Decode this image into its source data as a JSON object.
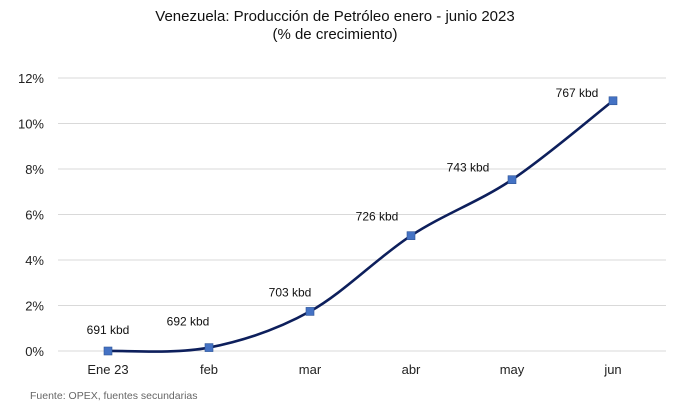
{
  "chart_data": {
    "type": "line",
    "title": "Venezuela: Producción de Petróleo enero - junio 2023",
    "subtitle": "(% de crecimiento)",
    "categories": [
      "Ene 23",
      "feb",
      "mar",
      "abr",
      "may",
      "jun"
    ],
    "series": [
      {
        "values": [
          0.0,
          0.15,
          1.74,
          5.07,
          7.53,
          11.0
        ],
        "data_labels": [
          "691 kbd",
          "692 kbd",
          "703 kbd",
          "726 kbd",
          "743 kbd",
          "767 kbd"
        ],
        "color": "#0d1f5c",
        "marker_color": "#4472c4"
      }
    ],
    "y_ticks": [
      "0%",
      "2%",
      "4%",
      "6%",
      "8%",
      "10%",
      "12%"
    ],
    "ylim": [
      0,
      12
    ],
    "grid": true,
    "legend": "none",
    "source": "Fuente: OPEX, fuentes secundarias",
    "gridline_color": "#d9d9d9"
  }
}
